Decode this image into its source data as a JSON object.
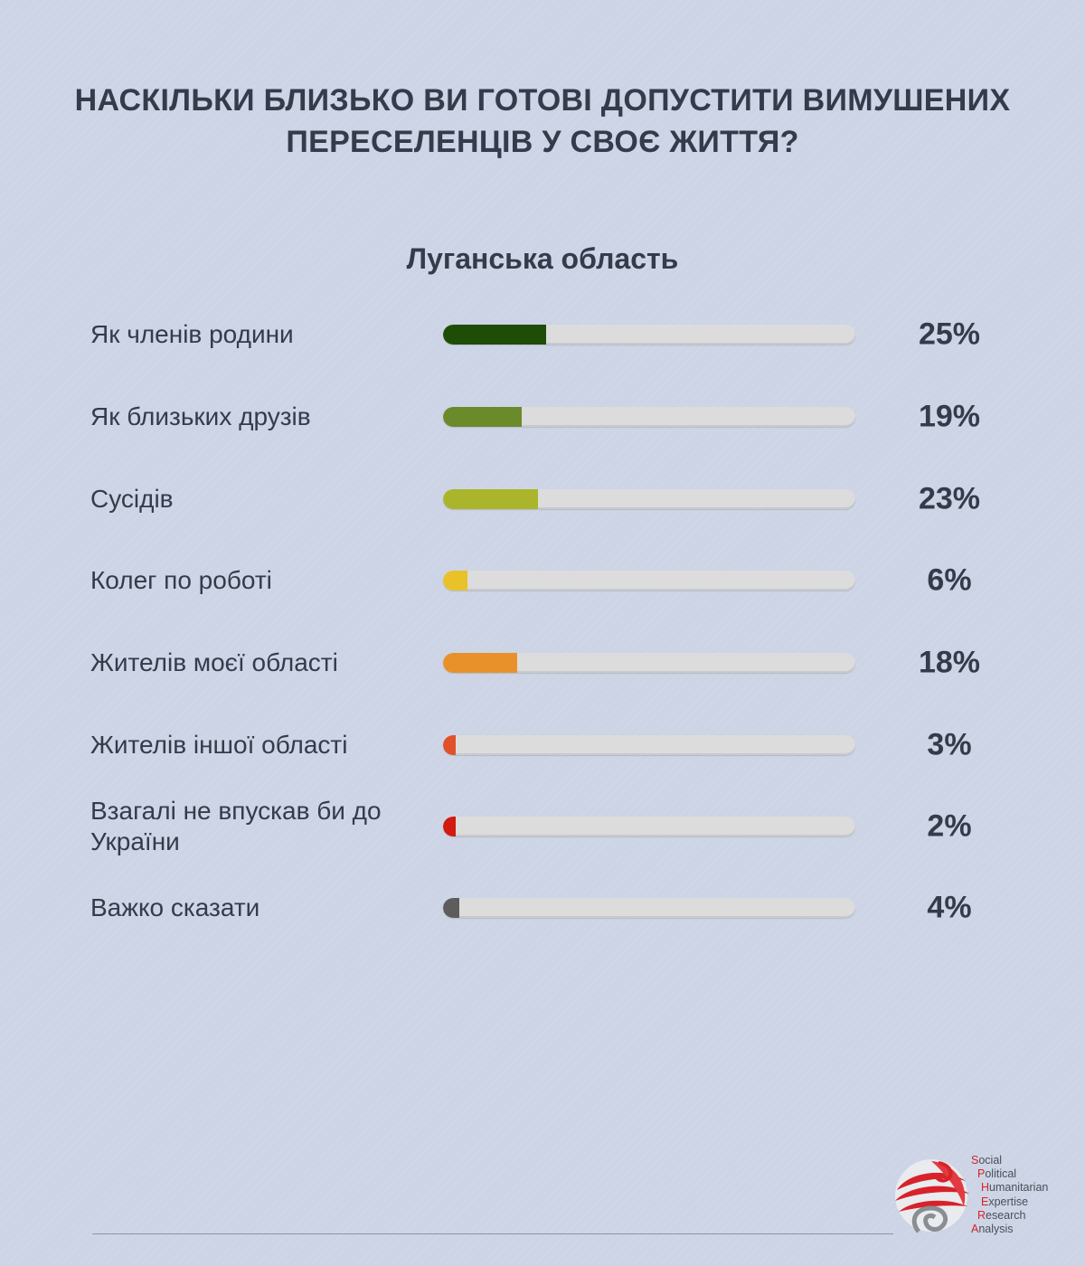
{
  "chart_data": {
    "type": "bar",
    "orientation": "horizontal",
    "title_lines": [
      "НАСКІЛЬКИ БЛИЗЬКО ВИ ГОТОВІ ДОПУСТИТИ ВИМУШЕНИХ",
      "ПЕРЕСЕЛЕНЦІВ У СВОЄ ЖИТТЯ?"
    ],
    "subtitle": "Луганська область",
    "xlim": [
      0,
      100
    ],
    "grid": false,
    "legend": "none",
    "categories": [
      {
        "label": "Як членів родини",
        "value": 25,
        "value_label": "25%",
        "color": "#1e4d07"
      },
      {
        "label": "Як близьких друзів",
        "value": 19,
        "value_label": "19%",
        "color": "#6b8a2a"
      },
      {
        "label": "Сусідів",
        "value": 23,
        "value_label": "23%",
        "color": "#aab52b"
      },
      {
        "label": "Колег по роботі",
        "value": 6,
        "value_label": "6%",
        "color": "#e8c228"
      },
      {
        "label": "Жителів моєї області",
        "value": 18,
        "value_label": "18%",
        "color": "#e8912a"
      },
      {
        "label": "Жителів іншої області",
        "value": 3,
        "value_label": "3%",
        "color": "#e2502a"
      },
      {
        "label": "Взагалі не впускав би до України",
        "value": 2,
        "value_label": "2%",
        "color": "#d21a10"
      },
      {
        "label": "Важко сказати",
        "value": 4,
        "value_label": "4%",
        "color": "#5d5d5d"
      }
    ]
  },
  "logo": {
    "lines": [
      {
        "initial": "S",
        "rest": "ocial"
      },
      {
        "initial": "P",
        "rest": "olitical"
      },
      {
        "initial": "H",
        "rest": "umanitarian"
      },
      {
        "initial": "E",
        "rest": "xpertise"
      },
      {
        "initial": "R",
        "rest": "esearch"
      },
      {
        "initial": "A",
        "rest": "nalysis"
      }
    ],
    "colors": {
      "accent": "#d8222a",
      "grey": "#8a8d92"
    }
  }
}
